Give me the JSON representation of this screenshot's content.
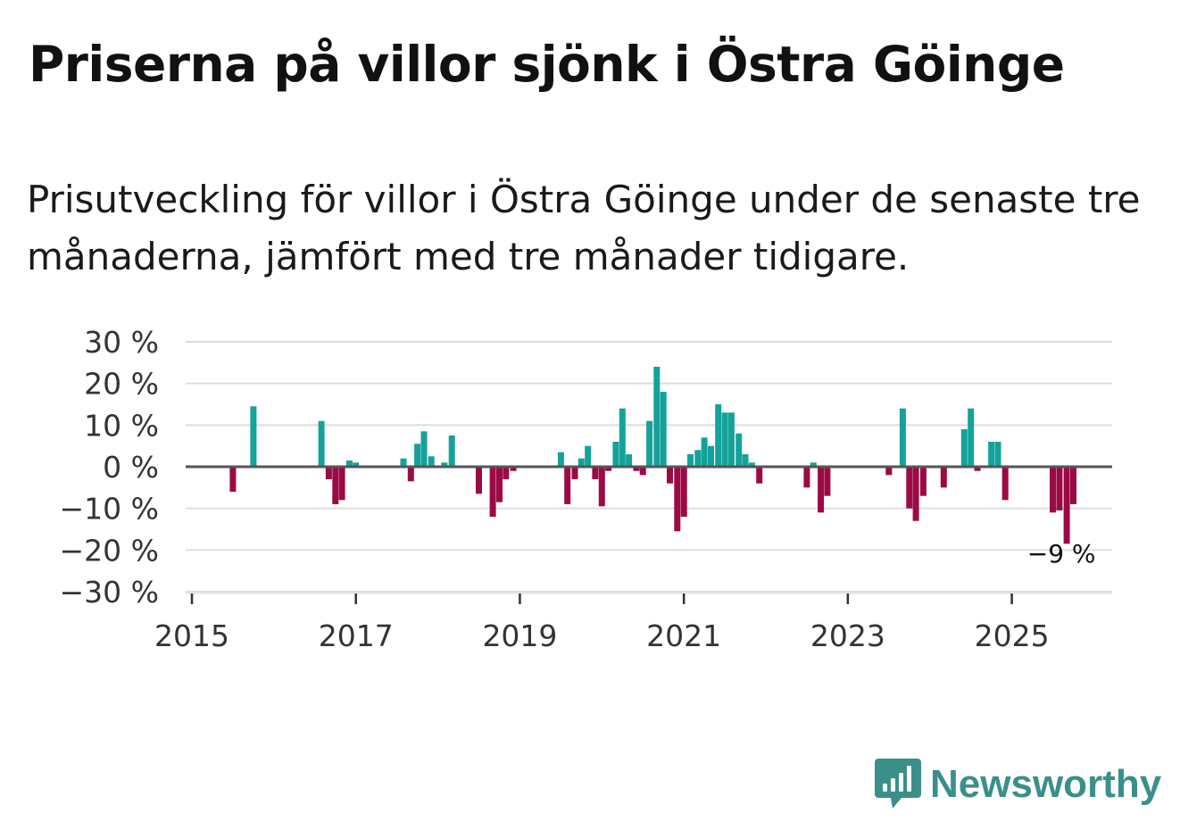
{
  "title": "Priserna på villor sjönk i Östra Göinge",
  "subtitle": "Prisutveckling för villor i Östra Göinge under de senaste tre månaderna, jämfört med tre månader tidigare.",
  "brand": {
    "name": "Newsworthy",
    "icon": "newsworthy-logo-icon",
    "color": "#3a8f8b"
  },
  "colors": {
    "positive": "#14a29a",
    "negative": "#9b0a44",
    "grid": "#dddddd",
    "zero_line": "#555555"
  },
  "chart_data": {
    "type": "bar",
    "title": "Priserna på villor sjönk i Östra Göinge",
    "xlabel": "",
    "ylabel": "",
    "ylim": [
      -30,
      30
    ],
    "xlim": [
      2015,
      2026.3
    ],
    "y_ticks": [
      30,
      20,
      10,
      0,
      -10,
      -20,
      -30
    ],
    "y_tick_labels": [
      "30 %",
      "20 %",
      "10 %",
      "0 %",
      "−10 %",
      "−20 %",
      "−30 %"
    ],
    "x_ticks": [
      2015,
      2017,
      2019,
      2021,
      2023,
      2025
    ],
    "x_tick_labels": [
      "2015",
      "2017",
      "2019",
      "2021",
      "2023",
      "2025"
    ],
    "grid": true,
    "annotation": {
      "label": "−9 %",
      "x": 2025.67,
      "y": -9
    },
    "bars": [
      {
        "x": 2015.5,
        "value": -6
      },
      {
        "x": 2015.75,
        "value": 14.5
      },
      {
        "x": 2016.58,
        "value": 11
      },
      {
        "x": 2016.67,
        "value": -3
      },
      {
        "x": 2016.75,
        "value": -9
      },
      {
        "x": 2016.83,
        "value": -8
      },
      {
        "x": 2016.92,
        "value": 1.5
      },
      {
        "x": 2017.0,
        "value": 1
      },
      {
        "x": 2017.58,
        "value": 2
      },
      {
        "x": 2017.67,
        "value": -3.5
      },
      {
        "x": 2017.75,
        "value": 5.5
      },
      {
        "x": 2017.83,
        "value": 8.5
      },
      {
        "x": 2017.92,
        "value": 2.5
      },
      {
        "x": 2018.08,
        "value": 1
      },
      {
        "x": 2018.17,
        "value": 7.5
      },
      {
        "x": 2018.5,
        "value": -6.5
      },
      {
        "x": 2018.67,
        "value": -12
      },
      {
        "x": 2018.75,
        "value": -8.5
      },
      {
        "x": 2018.83,
        "value": -3
      },
      {
        "x": 2018.92,
        "value": -1
      },
      {
        "x": 2019.5,
        "value": 3.5
      },
      {
        "x": 2019.58,
        "value": -9
      },
      {
        "x": 2019.67,
        "value": -3
      },
      {
        "x": 2019.75,
        "value": 2
      },
      {
        "x": 2019.83,
        "value": 5
      },
      {
        "x": 2019.92,
        "value": -3
      },
      {
        "x": 2020.0,
        "value": -9.5
      },
      {
        "x": 2020.08,
        "value": -1
      },
      {
        "x": 2020.17,
        "value": 6
      },
      {
        "x": 2020.25,
        "value": 14
      },
      {
        "x": 2020.33,
        "value": 3
      },
      {
        "x": 2020.42,
        "value": -1
      },
      {
        "x": 2020.5,
        "value": -2
      },
      {
        "x": 2020.58,
        "value": 11
      },
      {
        "x": 2020.67,
        "value": 24
      },
      {
        "x": 2020.75,
        "value": 18
      },
      {
        "x": 2020.83,
        "value": -4
      },
      {
        "x": 2020.92,
        "value": -15.5
      },
      {
        "x": 2021.0,
        "value": -12
      },
      {
        "x": 2021.08,
        "value": 3
      },
      {
        "x": 2021.17,
        "value": 4
      },
      {
        "x": 2021.25,
        "value": 7
      },
      {
        "x": 2021.33,
        "value": 5
      },
      {
        "x": 2021.42,
        "value": 15
      },
      {
        "x": 2021.5,
        "value": 13
      },
      {
        "x": 2021.58,
        "value": 13
      },
      {
        "x": 2021.67,
        "value": 8
      },
      {
        "x": 2021.75,
        "value": 3
      },
      {
        "x": 2021.83,
        "value": 1
      },
      {
        "x": 2021.92,
        "value": -4
      },
      {
        "x": 2022.5,
        "value": -5
      },
      {
        "x": 2022.58,
        "value": 1
      },
      {
        "x": 2022.67,
        "value": -11
      },
      {
        "x": 2022.75,
        "value": -7
      },
      {
        "x": 2023.5,
        "value": -2
      },
      {
        "x": 2023.67,
        "value": 14
      },
      {
        "x": 2023.75,
        "value": -10
      },
      {
        "x": 2023.83,
        "value": -13
      },
      {
        "x": 2023.92,
        "value": -7
      },
      {
        "x": 2024.17,
        "value": -5
      },
      {
        "x": 2024.42,
        "value": 9
      },
      {
        "x": 2024.5,
        "value": 14
      },
      {
        "x": 2024.58,
        "value": -1
      },
      {
        "x": 2024.75,
        "value": 6
      },
      {
        "x": 2024.83,
        "value": 6
      },
      {
        "x": 2024.92,
        "value": -8
      },
      {
        "x": 2025.5,
        "value": -11
      },
      {
        "x": 2025.58,
        "value": -10.5
      },
      {
        "x": 2025.67,
        "value": -18.5
      },
      {
        "x": 2025.75,
        "value": -9
      }
    ]
  }
}
